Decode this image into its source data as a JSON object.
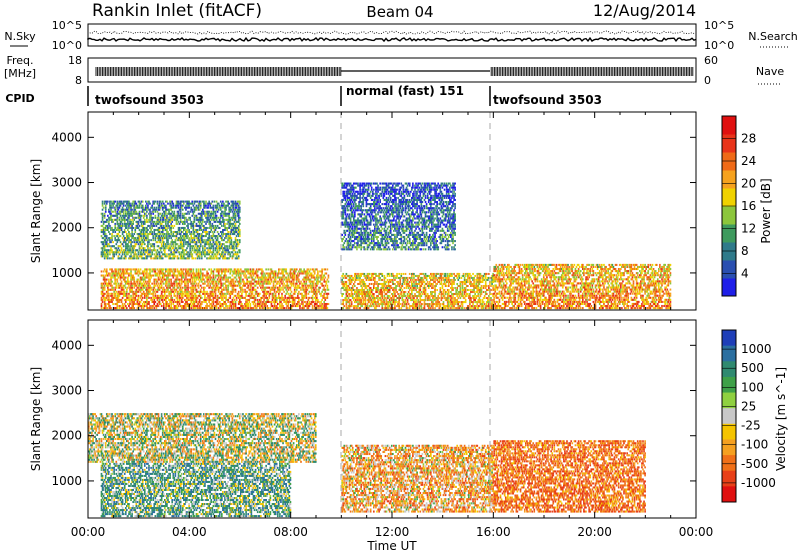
{
  "header": {
    "station": "Rankin Inlet (fitACF)",
    "beam": "Beam 04",
    "date": "12/Aug/2014"
  },
  "noise_panel": {
    "left_label": "N.Sky",
    "left_ticks": [
      "10^5",
      "10^0"
    ],
    "right_label": "N.Search",
    "right_ticks": [
      "10^5",
      "10^0"
    ]
  },
  "freq_panel": {
    "left_label_line1": "Freq.",
    "left_label_line2": "[MHz]",
    "left_ticks": [
      "18",
      "8"
    ],
    "right_label": "Nave",
    "right_ticks": [
      "60",
      "0"
    ]
  },
  "cpid_panel": {
    "label": "CPID",
    "segments": [
      {
        "name": "twofsound 3503",
        "start_hour": 0,
        "end_hour": 10
      },
      {
        "name": "normal (fast) 151",
        "start_hour": 10,
        "end_hour": 16
      },
      {
        "name": "twofsound 3503",
        "start_hour": 16,
        "end_hour": 24
      }
    ]
  },
  "chart_data": [
    {
      "type": "heatmap",
      "title": "Power",
      "xlabel": "Time UT",
      "ylabel": "Slant Range [km]",
      "xlim_hours": [
        0,
        24
      ],
      "ylim_km": [
        180,
        4560
      ],
      "y_ticks": [
        1000,
        2000,
        3000,
        4000
      ],
      "colorbar": {
        "label": "Power [dB]",
        "ticks": [
          "4",
          "8",
          "12",
          "16",
          "20",
          "24",
          "28"
        ],
        "colors": [
          "#1f1fe8",
          "#2a4fb0",
          "#2f7a8a",
          "#3e9a5e",
          "#8cc63c",
          "#f0d200",
          "#f6a21e",
          "#ef6a18",
          "#e8341a",
          "#e01010"
        ]
      },
      "dashed_lines_hours": [
        10,
        16
      ],
      "echo_regions": [
        {
          "t": [
            0.5,
            9.5
          ],
          "range_km": [
            200,
            1100
          ],
          "mean_value_db": 22
        },
        {
          "t": [
            10,
            16
          ],
          "range_km": [
            200,
            1000
          ],
          "mean_value_db": 20
        },
        {
          "t": [
            16,
            23
          ],
          "range_km": [
            200,
            1200
          ],
          "mean_value_db": 22
        },
        {
          "t": [
            0.5,
            6
          ],
          "range_km": [
            1300,
            2600
          ],
          "mean_value_db": 12
        },
        {
          "t": [
            10,
            14.5
          ],
          "range_km": [
            1500,
            3000
          ],
          "mean_value_db": 8
        }
      ]
    },
    {
      "type": "heatmap",
      "title": "Velocity",
      "xlabel": "Time UT",
      "ylabel": "Slant Range [km]",
      "xlim_hours": [
        0,
        24
      ],
      "ylim_km": [
        180,
        4560
      ],
      "y_ticks": [
        1000,
        2000,
        3000,
        4000
      ],
      "colorbar": {
        "label": "Velocity [m s^-1]",
        "ticks": [
          "1000",
          "500",
          "100",
          "25",
          "-25",
          "-100",
          "-500",
          "-1000"
        ],
        "colors": [
          "#1f3fb8",
          "#2b6fa0",
          "#2f8a70",
          "#3ea048",
          "#8fd040",
          "#c8c8c8",
          "#f5c400",
          "#f5a020",
          "#f07018",
          "#e84018",
          "#e01010"
        ]
      },
      "dashed_lines_hours": [
        10,
        16
      ],
      "echo_regions": [
        {
          "t": [
            0.5,
            8
          ],
          "range_km": [
            200,
            1400
          ],
          "mean_value_ms": 150
        },
        {
          "t": [
            10,
            16
          ],
          "range_km": [
            300,
            1800
          ],
          "mean_value_ms": -150
        },
        {
          "t": [
            16,
            22
          ],
          "range_km": [
            300,
            1900
          ],
          "mean_value_ms": -300
        },
        {
          "t": [
            0,
            9
          ],
          "range_km": [
            1400,
            2500
          ],
          "mean_value_ms": 0
        }
      ]
    }
  ],
  "x_axis": {
    "label": "Time UT",
    "ticks": [
      "00:00",
      "04:00",
      "08:00",
      "12:00",
      "16:00",
      "20:00",
      "00:00"
    ]
  }
}
